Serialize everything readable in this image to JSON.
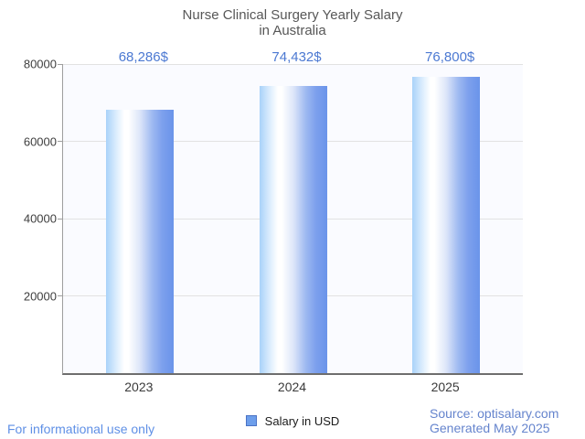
{
  "title": {
    "line1": "Nurse Clinical Surgery Yearly Salary",
    "line2": "in Australia"
  },
  "chart_data": {
    "type": "bar",
    "categories": [
      "2023",
      "2024",
      "2025"
    ],
    "series": [
      {
        "name": "Salary in USD",
        "values": [
          68286,
          74432,
          76800
        ]
      }
    ],
    "value_labels": [
      "68,286$",
      "74,432$",
      "76,800$"
    ],
    "ylim": [
      0,
      80000
    ],
    "yticks": [
      20000,
      40000,
      60000,
      80000
    ],
    "grid": true,
    "legend_position": "bottom",
    "xlabel": "",
    "ylabel": ""
  },
  "legend": {
    "label": "Salary in USD"
  },
  "footer": {
    "disclaimer": "For informational use only",
    "source": "Source: optisalary.com",
    "generated": "Generated May 2025"
  },
  "colors": {
    "bar_light": "#a9d2f9",
    "bar_highlight": "#ffffff",
    "bar_dark": "#6a94ea",
    "annotation_blue": "#4c79d2",
    "legend_swatch_fill": "#6d9eeb",
    "legend_swatch_border": "#4a72c4",
    "disclaimer_blue": "#5f90e6",
    "source_blue": "#6584cd",
    "title_gray": "#575757"
  }
}
